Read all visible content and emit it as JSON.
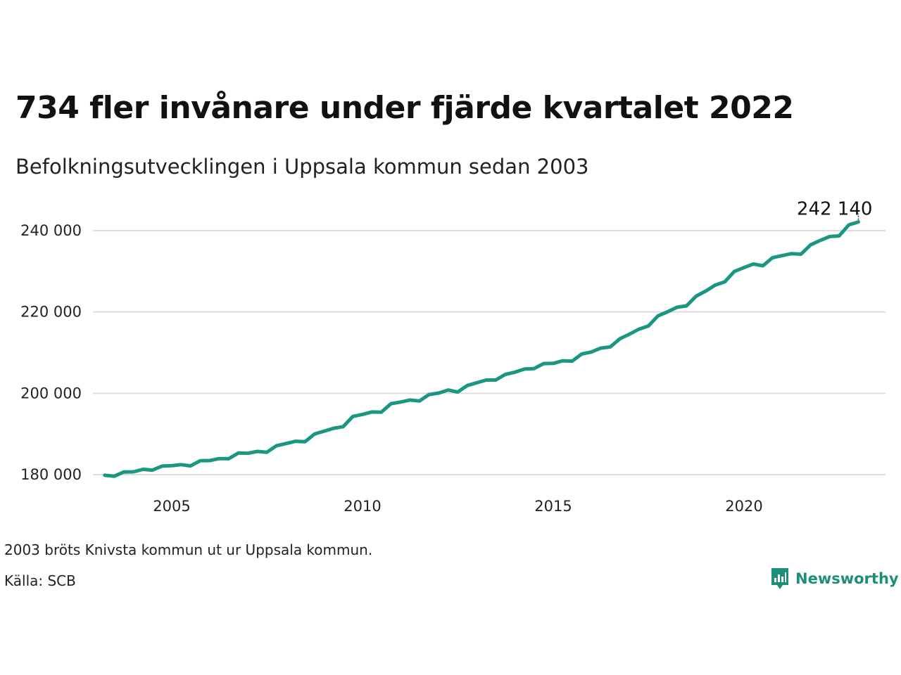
{
  "title": "734 fler invånare under fjärde kvartalet 2022",
  "subtitle": "Befolkningsutvecklingen i Uppsala kommun sedan 2003",
  "note": "2003 bröts Knivsta kommun ut ur Uppsala kommun.",
  "source": "Källa: SCB",
  "brand": {
    "name": "Newsworthy",
    "icon": "newsworthy-logo-icon",
    "color": "#1d8e7a"
  },
  "chart_data": {
    "type": "line",
    "title": "734 fler invånare under fjärde kvartalet 2022",
    "subtitle": "Befolkningsutvecklingen i Uppsala kommun sedan 2003",
    "xlabel": "",
    "ylabel": "",
    "x_ticks": [
      "2005",
      "2010",
      "2015",
      "2020"
    ],
    "y_ticks": [
      "180 000",
      "200 000",
      "220 000",
      "240 000"
    ],
    "ylim": [
      175000,
      245000
    ],
    "grid": "horizontal",
    "line_color": "#1a9682",
    "end_label": "242 140",
    "series": [
      {
        "x": [
          "2003-03-31",
          "2003-06-30",
          "2003-09-30",
          "2003-12-31",
          "2004-03-31",
          "2004-06-30",
          "2004-09-30",
          "2004-12-31",
          "2005-03-31",
          "2005-06-30",
          "2005-09-30",
          "2005-12-31",
          "2006-03-31",
          "2006-06-30",
          "2006-09-30",
          "2006-12-31",
          "2007-03-31",
          "2007-06-30",
          "2007-09-30",
          "2007-12-31",
          "2008-03-31",
          "2008-06-30",
          "2008-09-30",
          "2008-12-31",
          "2009-03-31",
          "2009-06-30",
          "2009-09-30",
          "2009-12-31",
          "2010-03-31",
          "2010-06-30",
          "2010-09-30",
          "2010-12-31",
          "2011-03-31",
          "2011-06-30",
          "2011-09-30",
          "2011-12-31",
          "2012-03-31",
          "2012-06-30",
          "2012-09-30",
          "2012-12-31",
          "2013-03-31",
          "2013-06-30",
          "2013-09-30",
          "2013-12-31",
          "2014-03-31",
          "2014-06-30",
          "2014-09-30",
          "2014-12-31",
          "2015-03-31",
          "2015-06-30",
          "2015-09-30",
          "2015-12-31",
          "2016-03-31",
          "2016-06-30",
          "2016-09-30",
          "2016-12-31",
          "2017-03-31",
          "2017-06-30",
          "2017-09-30",
          "2017-12-31",
          "2018-03-31",
          "2018-06-30",
          "2018-09-30",
          "2018-12-31",
          "2019-03-31",
          "2019-06-30",
          "2019-09-30",
          "2019-12-31",
          "2020-03-31",
          "2020-06-30",
          "2020-09-30",
          "2020-12-31",
          "2021-03-31",
          "2021-06-30",
          "2021-09-30",
          "2021-12-31",
          "2022-03-31",
          "2022-06-30",
          "2022-09-30",
          "2022-12-31"
        ],
        "values": [
          179850,
          179600,
          180650,
          180700,
          181300,
          181100,
          182100,
          182200,
          182450,
          182150,
          183400,
          183450,
          183950,
          183900,
          185300,
          185250,
          185700,
          185500,
          187100,
          187650,
          188200,
          188100,
          190000,
          190700,
          191400,
          191800,
          194300,
          194800,
          195400,
          195350,
          197450,
          197850,
          198350,
          198100,
          199700,
          200050,
          200800,
          200300,
          201900,
          202600,
          203250,
          203250,
          204650,
          205200,
          205950,
          206050,
          207300,
          207350,
          208000,
          207900,
          209650,
          210150,
          211100,
          211400,
          213400,
          214550,
          215750,
          216550,
          219050,
          220050,
          221150,
          221500,
          223900,
          225150,
          226600,
          227400,
          229950,
          230900,
          231800,
          231350,
          233350,
          233850,
          234350,
          234200,
          236500,
          237600,
          238550,
          238700,
          241400,
          242140
        ]
      }
    ]
  }
}
